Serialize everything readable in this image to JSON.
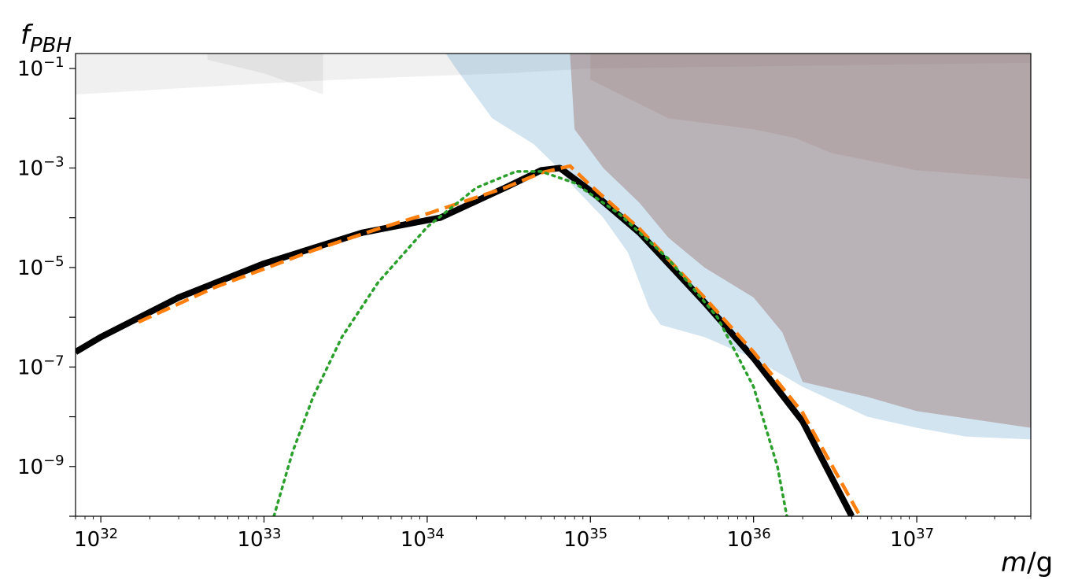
{
  "chart_data": {
    "type": "line",
    "title": "",
    "xlabel": {
      "var": "m",
      "unit": "/g"
    },
    "ylabel": {
      "base": "f",
      "sub": "PBH"
    },
    "xscale": "log",
    "yscale": "log",
    "xlim": [
      7e+31,
      5e+37
    ],
    "ylim": [
      1e-10,
      0.2
    ],
    "grid": false,
    "legend": "none",
    "x_ticks": [
      {
        "exp": "32",
        "value": 1e+32
      },
      {
        "exp": "33",
        "value": 1e+33
      },
      {
        "exp": "34",
        "value": 1e+34
      },
      {
        "exp": "35",
        "value": 1e+35
      },
      {
        "exp": "36",
        "value": 1e+36
      },
      {
        "exp": "37",
        "value": 1e+37
      }
    ],
    "y_ticks": [
      {
        "exp": "−1",
        "value": 0.1
      },
      {
        "exp": "−3",
        "value": 0.001
      },
      {
        "exp": "−5",
        "value": 1e-05
      },
      {
        "exp": "−7",
        "value": 1e-07
      },
      {
        "exp": "−9",
        "value": 1e-09
      }
    ],
    "series": [
      {
        "style": "solid",
        "color": "#000000",
        "points": [
          [
            7e+31,
            2e-07
          ],
          [
            1e+32,
            4e-07
          ],
          [
            3e+32,
            2.5e-06
          ],
          [
            1e+33,
            1.2e-05
          ],
          [
            4e+33,
            5e-05
          ],
          [
            1.2e+34,
            0.0001
          ],
          [
            3e+34,
            0.0004
          ],
          [
            5e+34,
            0.0009
          ],
          [
            6.5e+34,
            0.001
          ],
          [
            1e+35,
            0.00035
          ],
          [
            2e+35,
            5e-05
          ],
          [
            5e+35,
            2e-06
          ],
          [
            1e+36,
            1.5e-07
          ],
          [
            2e+36,
            8e-09
          ],
          [
            4e+36,
            1e-10
          ]
        ]
      },
      {
        "style": "dashed",
        "color": "#ff7f0e",
        "points": [
          [
            1.7e+32,
            8e-07
          ],
          [
            5e+32,
            4e-06
          ],
          [
            2e+33,
            2.2e-05
          ],
          [
            5e+33,
            6e-05
          ],
          [
            1e+34,
            0.00012
          ],
          [
            3e+34,
            0.0004
          ],
          [
            5e+34,
            0.0008
          ],
          [
            7.5e+34,
            0.0011
          ],
          [
            1e+35,
            0.00045
          ],
          [
            2e+35,
            6e-05
          ],
          [
            5e+35,
            2.5e-06
          ],
          [
            1e+36,
            2e-07
          ],
          [
            2e+36,
            1.2e-08
          ],
          [
            4.5e+36,
            1e-10
          ]
        ]
      },
      {
        "style": "dotted",
        "color": "#2ca02c",
        "points": [
          [
            1.15e+33,
            1e-10
          ],
          [
            1.5e+33,
            2e-09
          ],
          [
            2e+33,
            2.5e-08
          ],
          [
            3e+33,
            4e-07
          ],
          [
            5e+33,
            5e-06
          ],
          [
            1e+34,
            6.5e-05
          ],
          [
            2e+34,
            0.0004
          ],
          [
            3.5e+34,
            0.00085
          ],
          [
            5e+34,
            0.00085
          ],
          [
            8e+34,
            0.0005
          ],
          [
            1.5e+35,
            0.00012
          ],
          [
            3e+35,
            1.5e-05
          ],
          [
            6e+35,
            1e-06
          ],
          [
            1e+36,
            4e-08
          ],
          [
            1.4e+36,
            1e-09
          ],
          [
            1.6e+36,
            1e-10
          ]
        ]
      }
    ],
    "constraints": [
      {
        "color": "#808080",
        "opacity": 0.12,
        "points": [
          [
            7e+31,
            0.03
          ],
          [
            3e+32,
            0.04
          ],
          [
            1e+33,
            0.05
          ],
          [
            3e+33,
            0.06
          ],
          [
            1e+34,
            0.07
          ],
          [
            3e+34,
            0.08
          ],
          [
            1e+35,
            0.1
          ],
          [
            5e+37,
            0.13
          ],
          [
            5e+37,
            0.2
          ],
          [
            7e+31,
            0.2
          ]
        ]
      },
      {
        "color": "#808080",
        "opacity": 0.12,
        "points": [
          [
            4.5e+32,
            0.15
          ],
          [
            1e+33,
            0.08
          ],
          [
            2.3e+33,
            0.03
          ],
          [
            2.3e+33,
            0.2
          ],
          [
            4.5e+32,
            0.2
          ]
        ]
      },
      {
        "color": "#1f77b4",
        "opacity": 0.2,
        "points": [
          [
            1.3e+34,
            0.2
          ],
          [
            1.5e+34,
            0.1
          ],
          [
            2.5e+34,
            0.01
          ],
          [
            4.5e+34,
            0.003
          ],
          [
            6e+34,
            0.0012
          ],
          [
            8e+34,
            0.0004
          ],
          [
            1.2e+35,
            0.0001
          ],
          [
            1.7e+35,
            2e-05
          ],
          [
            2.3e+35,
            1.5e-06
          ],
          [
            2.7e+35,
            7e-07
          ],
          [
            5e+35,
            4e-07
          ],
          [
            1e+36,
            1.5e-07
          ],
          [
            2e+36,
            4e-08
          ],
          [
            5e+36,
            1e-08
          ],
          [
            1e+37,
            6e-09
          ],
          [
            2e+37,
            4e-09
          ],
          [
            5e+37,
            3.5e-09
          ],
          [
            5e+37,
            0.2
          ]
        ]
      },
      {
        "color": "#8c564b",
        "opacity": 0.35,
        "points": [
          [
            7.5e+34,
            0.2
          ],
          [
            8e+34,
            0.006
          ],
          [
            1.2e+35,
            0.001
          ],
          [
            2e+35,
            0.0002
          ],
          [
            3e+35,
            4e-05
          ],
          [
            5e+35,
            1e-05
          ],
          [
            1e+36,
            2.5e-06
          ],
          [
            1.5e+36,
            5e-07
          ],
          [
            2e+36,
            5e-08
          ],
          [
            5e+36,
            2.5e-08
          ],
          [
            1e+37,
            1.3e-08
          ],
          [
            5e+37,
            6e-09
          ],
          [
            5e+37,
            0.2
          ]
        ]
      },
      {
        "color": "#8c564b",
        "opacity": 0.12,
        "points": [
          [
            1e+35,
            0.2
          ],
          [
            1e+35,
            0.06
          ],
          [
            3e+35,
            0.01
          ],
          [
            1e+36,
            0.006
          ],
          [
            1.8e+36,
            0.004
          ],
          [
            3e+36,
            0.002
          ],
          [
            1e+37,
            0.0009
          ],
          [
            5e+37,
            0.0006
          ],
          [
            5e+37,
            0.2
          ]
        ]
      }
    ]
  }
}
